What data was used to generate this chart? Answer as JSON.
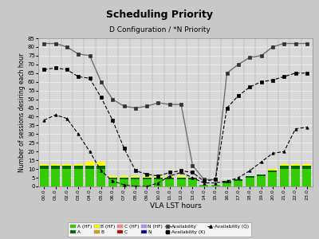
{
  "title": "Scheduling Priority",
  "subtitle": "D Configuration / *N Priority",
  "xlabel": "VLA LST hours",
  "ylabel": "Number of sessions desiring each hour",
  "xlim": [
    -0.5,
    23.5
  ],
  "ylim": [
    0,
    85
  ],
  "yticks": [
    0,
    5,
    10,
    15,
    20,
    25,
    30,
    35,
    40,
    45,
    50,
    55,
    60,
    65,
    70,
    75,
    80,
    85
  ],
  "xtick_labels": [
    "00.0",
    "01.0",
    "02.0",
    "03.0",
    "04.0",
    "05.0",
    "06.0",
    "07.0",
    "08.0",
    "09.0",
    "10.0",
    "11.0",
    "12.0",
    "13.0",
    "14.0",
    "15.0",
    "16.0",
    "17.0",
    "18.0",
    "19.0",
    "20.0",
    "21.0",
    "22.0",
    "23.0"
  ],
  "hours": [
    0,
    1,
    2,
    3,
    4,
    5,
    6,
    7,
    8,
    9,
    10,
    11,
    12,
    13,
    14,
    15,
    16,
    17,
    18,
    19,
    20,
    21,
    22,
    23
  ],
  "bar_A_HF": [
    10,
    10,
    10,
    10,
    10,
    10,
    4,
    4,
    4,
    4,
    4,
    4,
    4,
    4,
    1,
    1,
    2,
    3,
    5,
    6,
    8,
    10,
    10,
    10
  ],
  "bar_A": [
    2,
    2,
    2,
    2,
    2,
    2,
    1,
    1,
    1,
    1,
    1,
    1,
    1,
    1,
    0,
    0,
    1,
    1,
    1,
    1,
    1,
    2,
    2,
    2
  ],
  "bar_B_HF": [
    1,
    1,
    1,
    1,
    2,
    2,
    1,
    1,
    1,
    1,
    1,
    1,
    1,
    0,
    0,
    0,
    0,
    0,
    0,
    0,
    1,
    1,
    1,
    1
  ],
  "bar_B": [
    0,
    0,
    0,
    0,
    0,
    0,
    0,
    0,
    0,
    0,
    0,
    0,
    0,
    0,
    0,
    0,
    0,
    0,
    0,
    0,
    0,
    0,
    0,
    0
  ],
  "bar_C_HF": [
    0,
    0,
    0,
    0,
    0,
    0,
    0,
    0,
    0,
    0,
    0,
    0,
    0,
    0,
    0,
    0,
    0,
    0,
    0,
    0,
    0,
    0,
    0,
    0
  ],
  "bar_C": [
    0,
    0,
    0,
    0,
    0,
    0,
    0,
    0,
    0,
    0,
    0,
    0,
    0,
    0,
    0,
    0,
    0,
    0,
    0,
    0,
    0,
    0,
    0,
    0
  ],
  "bar_N_HF": [
    0,
    0,
    0,
    0,
    0,
    0,
    0,
    0,
    0,
    0,
    0,
    0,
    0,
    0,
    0,
    0,
    0,
    0,
    0,
    0,
    0,
    0,
    0,
    0
  ],
  "bar_N": [
    0,
    0,
    0,
    0,
    0,
    0,
    0,
    0,
    0,
    0,
    0,
    0,
    0,
    0,
    0,
    0,
    0,
    0,
    0,
    0,
    0,
    0,
    0,
    0
  ],
  "avail": [
    82,
    82,
    80,
    76,
    75,
    60,
    50,
    46,
    45,
    46,
    48,
    47,
    47,
    12,
    4,
    4,
    65,
    70,
    74,
    75,
    80,
    82,
    82,
    82
  ],
  "avail_K": [
    67,
    68,
    67,
    63,
    62,
    51,
    38,
    22,
    9,
    7,
    6,
    8,
    9,
    8,
    3,
    4,
    45,
    52,
    57,
    60,
    61,
    63,
    65,
    65
  ],
  "avail_Q": [
    38,
    41,
    39,
    30,
    20,
    9,
    3,
    1,
    0,
    0,
    2,
    6,
    8,
    5,
    2,
    2,
    3,
    5,
    9,
    14,
    19,
    20,
    33,
    34
  ],
  "color_A_HF": "#33cc00",
  "color_A": "#006600",
  "color_B_HF": "#ffff00",
  "color_B": "#ccaa00",
  "color_C_HF": "#ff8888",
  "color_C": "#cc0000",
  "color_N_HF": "#9999ff",
  "color_N": "#000099",
  "bg_color": "#c8c8c8",
  "plot_bg": "#d8d8d8",
  "grid_color": "#ffffff"
}
